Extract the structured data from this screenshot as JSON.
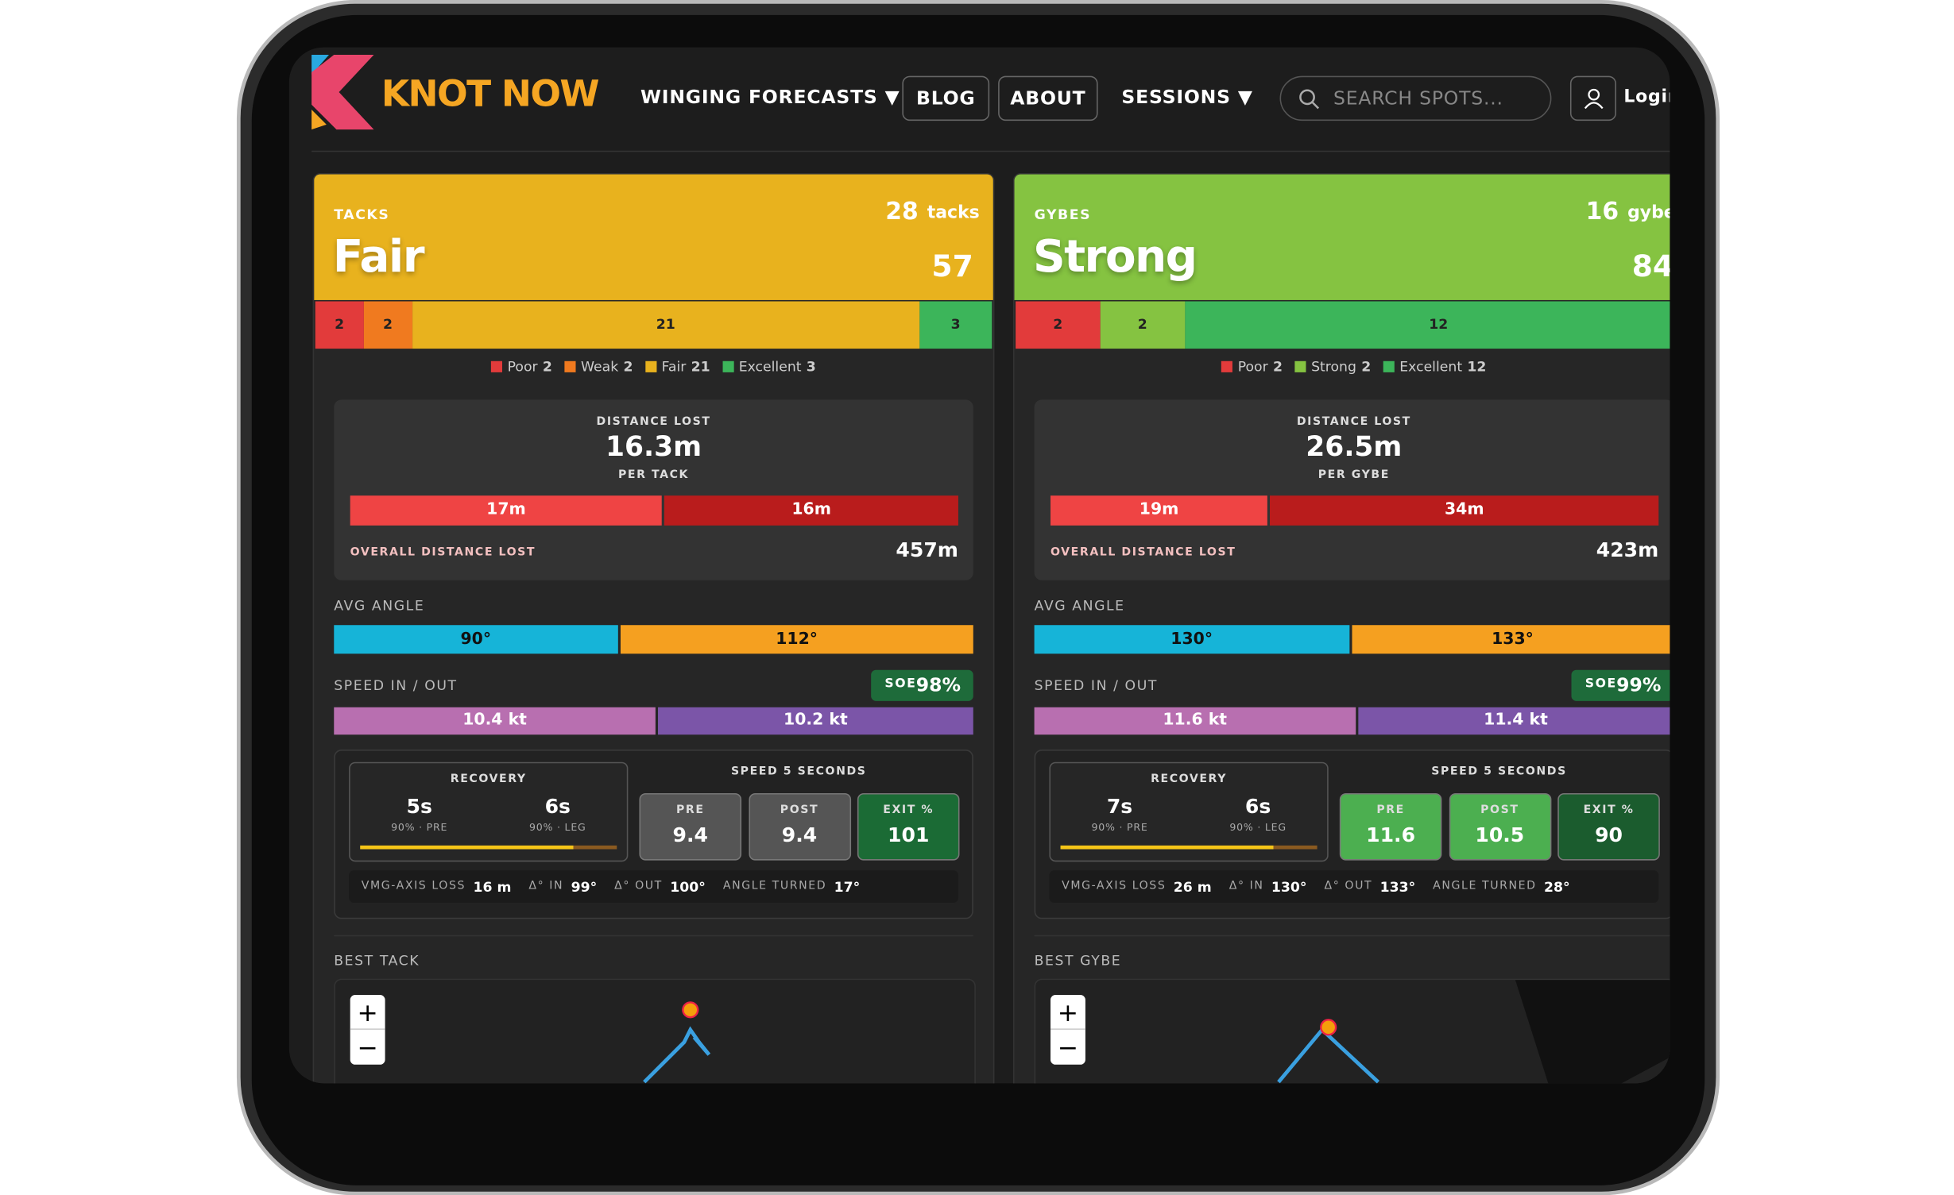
{
  "nav": {
    "brand": "KNOT NOW",
    "items": [
      "WINGING FORECASTS ▼",
      "BLOG",
      "ABOUT",
      "SESSIONS ▼"
    ],
    "search_placeholder": "SEARCH SPOTS...",
    "login": "Login"
  },
  "panels": [
    {
      "label": "TACKS",
      "count": 28,
      "count_unit": "tacks",
      "rating": "Fair",
      "score": 57,
      "color": "#e8b21e",
      "segments": [
        {
          "name": "Poor",
          "count": 2,
          "color": "#e23b3b"
        },
        {
          "name": "Weak",
          "count": 2,
          "color": "#f07a1f"
        },
        {
          "name": "Fair",
          "count": 21,
          "color": "#e8b21e"
        },
        {
          "name": "Excellent",
          "count": 3,
          "color": "#3cb55a"
        }
      ],
      "distance": {
        "title": "DISTANCE LOST",
        "value": "16.3m",
        "unit_label": "PER TACK",
        "split": [
          "17m",
          "16m"
        ],
        "overall_label": "OVERALL DISTANCE LOST",
        "overall": "457m"
      },
      "angle": {
        "title": "AVG ANGLE",
        "values": [
          "90°",
          "112°"
        ]
      },
      "speed": {
        "title": "SPEED IN / OUT",
        "soe_label": "SOE",
        "soe": "98%",
        "values": [
          "10.4 kt",
          "10.2 kt"
        ]
      },
      "recovery": {
        "title": "RECOVERY",
        "items": [
          {
            "value": "5s",
            "label": "90% · PRE"
          },
          {
            "value": "6s",
            "label": "90% · LEG"
          }
        ]
      },
      "speed5": {
        "title": "SPEED 5 SECONDS",
        "tiles": [
          {
            "label": "PRE",
            "value": "9.4",
            "color": "#555555"
          },
          {
            "label": "POST",
            "value": "9.4",
            "color": "#555555"
          },
          {
            "label": "EXIT %",
            "value": "101",
            "color": "#1b6b35"
          }
        ]
      },
      "stats": [
        {
          "label": "VMG-AXIS LOSS",
          "value": "16 m"
        },
        {
          "label": "Δ° IN",
          "value": "99°"
        },
        {
          "label": "Δ° OUT",
          "value": "100°"
        },
        {
          "label": "ANGLE TURNED",
          "value": "17°"
        }
      ],
      "best": "BEST TACK"
    },
    {
      "label": "GYBES",
      "count": 16,
      "count_unit": "gybes",
      "rating": "Strong",
      "score": 84,
      "color": "#85c341",
      "segments": [
        {
          "name": "Poor",
          "count": 2,
          "color": "#e23b3b"
        },
        {
          "name": "Strong",
          "count": 2,
          "color": "#85c341"
        },
        {
          "name": "Excellent",
          "count": 12,
          "color": "#3cb55a"
        }
      ],
      "distance": {
        "title": "DISTANCE LOST",
        "value": "26.5m",
        "unit_label": "PER GYBE",
        "split": [
          "19m",
          "34m"
        ],
        "overall_label": "OVERALL DISTANCE LOST",
        "overall": "423m"
      },
      "angle": {
        "title": "AVG ANGLE",
        "values": [
          "130°",
          "133°"
        ]
      },
      "speed": {
        "title": "SPEED IN / OUT",
        "soe_label": "SOE",
        "soe": "99%",
        "values": [
          "11.6 kt",
          "11.4 kt"
        ]
      },
      "recovery": {
        "title": "RECOVERY",
        "items": [
          {
            "value": "7s",
            "label": "90% · PRE"
          },
          {
            "value": "6s",
            "label": "90% · LEG"
          }
        ]
      },
      "speed5": {
        "title": "SPEED 5 SECONDS",
        "tiles": [
          {
            "label": "PRE",
            "value": "11.6",
            "color": "#4caf50"
          },
          {
            "label": "POST",
            "value": "10.5",
            "color": "#4caf50"
          },
          {
            "label": "EXIT %",
            "value": "90",
            "color": "#1b5c2e"
          }
        ]
      },
      "stats": [
        {
          "label": "VMG-AXIS LOSS",
          "value": "26 m"
        },
        {
          "label": "Δ° IN",
          "value": "130°"
        },
        {
          "label": "Δ° OUT",
          "value": "133°"
        },
        {
          "label": "ANGLE TURNED",
          "value": "28°"
        }
      ],
      "best": "BEST GYBE"
    }
  ],
  "map_controls": [
    "+",
    "−"
  ]
}
